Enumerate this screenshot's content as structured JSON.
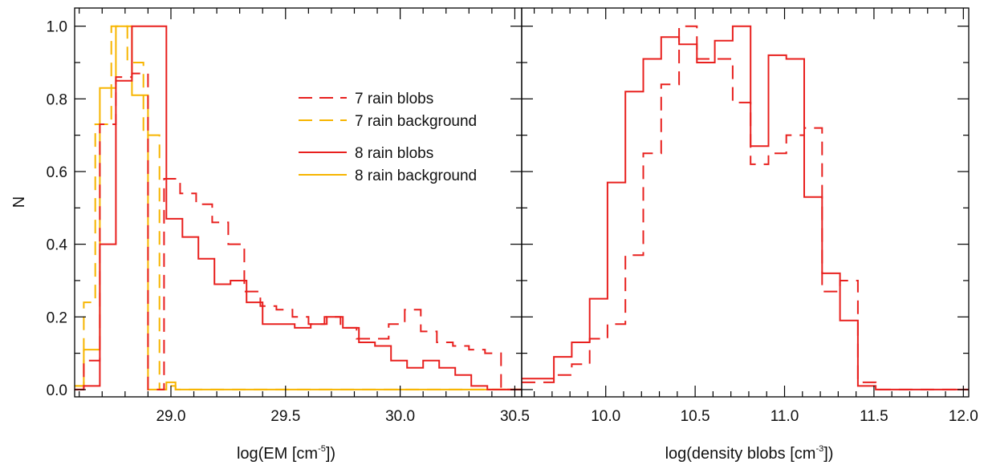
{
  "colors": {
    "red": "#e8201e",
    "orange": "#f7b500",
    "axis": "#000000"
  },
  "y_axis_label": "N",
  "chart_data": [
    {
      "type": "step-histogram",
      "xlabel_prefix": "log(EM [cm",
      "xlabel_sup": "-5",
      "xlabel_suffix": "])",
      "xlim": [
        28.58,
        30.53
      ],
      "ylim": [
        -0.02,
        1.05
      ],
      "xticks": [
        29.0,
        29.5,
        30.0,
        30.5
      ],
      "xtick_labels": [
        "29.0",
        "29.5",
        "30.0",
        "30.5"
      ],
      "yticks": [
        0.0,
        0.2,
        0.4,
        0.6,
        0.8,
        1.0
      ],
      "ytick_labels": [
        "0.0",
        "0.2",
        "0.4",
        "0.6",
        "0.8",
        "1.0"
      ],
      "legend": {
        "placement": "upper-right",
        "entries": [
          {
            "label": "7 rain blobs",
            "color": "red",
            "dash": true
          },
          {
            "label": "7 rain background",
            "color": "orange",
            "dash": true
          },
          {
            "label": "8 rain blobs",
            "color": "red",
            "dash": false
          },
          {
            "label": "8 rain background",
            "color": "orange",
            "dash": false
          }
        ]
      },
      "series": [
        {
          "name": "7 rain background",
          "color": "orange",
          "dash": true,
          "edges": [
            28.58,
            28.62,
            28.67,
            28.74,
            28.81,
            28.88,
            28.95,
            28.98,
            29.02,
            29.08,
            29.15,
            30.53
          ],
          "values": [
            0.01,
            0.24,
            0.73,
            1.0,
            0.9,
            0.7,
            0.0,
            0.01,
            0.0,
            0.0,
            0.0
          ]
        },
        {
          "name": "8 rain background",
          "color": "orange",
          "dash": false,
          "edges": [
            28.58,
            28.62,
            28.69,
            28.76,
            28.83,
            28.9,
            28.98,
            29.02,
            29.09,
            29.15,
            30.53
          ],
          "values": [
            0.01,
            0.11,
            0.83,
            1.0,
            0.81,
            0.0,
            0.02,
            0.0,
            0.0,
            0.0
          ]
        },
        {
          "name": "7 rain blobs",
          "color": "red",
          "dash": true,
          "edges": [
            28.58,
            28.62,
            28.69,
            28.76,
            28.83,
            28.9,
            28.97,
            29.04,
            29.11,
            29.18,
            29.25,
            29.32,
            29.39,
            29.46,
            29.53,
            29.6,
            29.67,
            29.74,
            29.81,
            29.88,
            29.95,
            30.02,
            30.09,
            30.16,
            30.23,
            30.3,
            30.37,
            30.44,
            30.53
          ],
          "values": [
            0.0,
            0.08,
            0.73,
            0.86,
            0.87,
            0.0,
            0.58,
            0.54,
            0.51,
            0.46,
            0.4,
            0.27,
            0.23,
            0.22,
            0.2,
            0.18,
            0.2,
            0.17,
            0.14,
            0.14,
            0.18,
            0.22,
            0.16,
            0.13,
            0.12,
            0.11,
            0.1,
            0.0
          ]
        },
        {
          "name": "8 rain blobs",
          "color": "red",
          "dash": false,
          "edges": [
            28.58,
            28.62,
            28.69,
            28.76,
            28.83,
            28.9,
            28.98,
            29.05,
            29.12,
            29.19,
            29.26,
            29.33,
            29.4,
            29.47,
            29.54,
            29.61,
            29.68,
            29.75,
            29.82,
            29.89,
            29.96,
            30.03,
            30.1,
            30.17,
            30.24,
            30.31,
            30.38,
            30.45,
            30.53
          ],
          "values": [
            0.0,
            0.01,
            0.4,
            0.85,
            1.0,
            1.0,
            0.47,
            0.42,
            0.36,
            0.29,
            0.3,
            0.24,
            0.18,
            0.18,
            0.17,
            0.18,
            0.2,
            0.17,
            0.13,
            0.12,
            0.08,
            0.06,
            0.08,
            0.06,
            0.04,
            0.01,
            0.0,
            0.0
          ]
        }
      ]
    },
    {
      "type": "step-histogram",
      "xlabel_prefix": "log(density blobs [cm",
      "xlabel_sup": "-3",
      "xlabel_suffix": "])",
      "xlim": [
        9.53,
        12.03
      ],
      "ylim": [
        -0.02,
        1.05
      ],
      "xticks": [
        10.0,
        10.5,
        11.0,
        11.5,
        12.0
      ],
      "xtick_labels": [
        "10.0",
        "10.5",
        "11.0",
        "11.5",
        "12.0"
      ],
      "yticks": [
        0.0,
        0.2,
        0.4,
        0.6,
        0.8,
        1.0
      ],
      "series": [
        {
          "name": "7 rain blobs",
          "color": "red",
          "dash": true,
          "edges": [
            9.53,
            9.61,
            9.71,
            9.81,
            9.91,
            10.01,
            10.11,
            10.21,
            10.31,
            10.41,
            10.51,
            10.61,
            10.71,
            10.81,
            10.91,
            11.01,
            11.11,
            11.21,
            11.31,
            11.41,
            11.51,
            11.61,
            12.03
          ],
          "values": [
            0.02,
            0.02,
            0.04,
            0.07,
            0.14,
            0.18,
            0.37,
            0.65,
            0.84,
            1.0,
            0.91,
            0.91,
            0.79,
            0.62,
            0.65,
            0.7,
            0.72,
            0.27,
            0.3,
            0.02,
            0.0,
            0.0
          ]
        },
        {
          "name": "8 rain blobs",
          "color": "red",
          "dash": false,
          "edges": [
            9.53,
            9.61,
            9.71,
            9.81,
            9.91,
            10.01,
            10.11,
            10.21,
            10.31,
            10.41,
            10.51,
            10.61,
            10.71,
            10.81,
            10.91,
            11.01,
            11.11,
            11.21,
            11.31,
            11.41,
            11.51,
            11.61,
            12.03
          ],
          "values": [
            0.03,
            0.03,
            0.09,
            0.13,
            0.25,
            0.57,
            0.82,
            0.91,
            0.97,
            0.95,
            0.9,
            0.96,
            1.0,
            0.67,
            0.92,
            0.91,
            0.53,
            0.32,
            0.19,
            0.01,
            0.0,
            0.0
          ]
        }
      ]
    }
  ]
}
